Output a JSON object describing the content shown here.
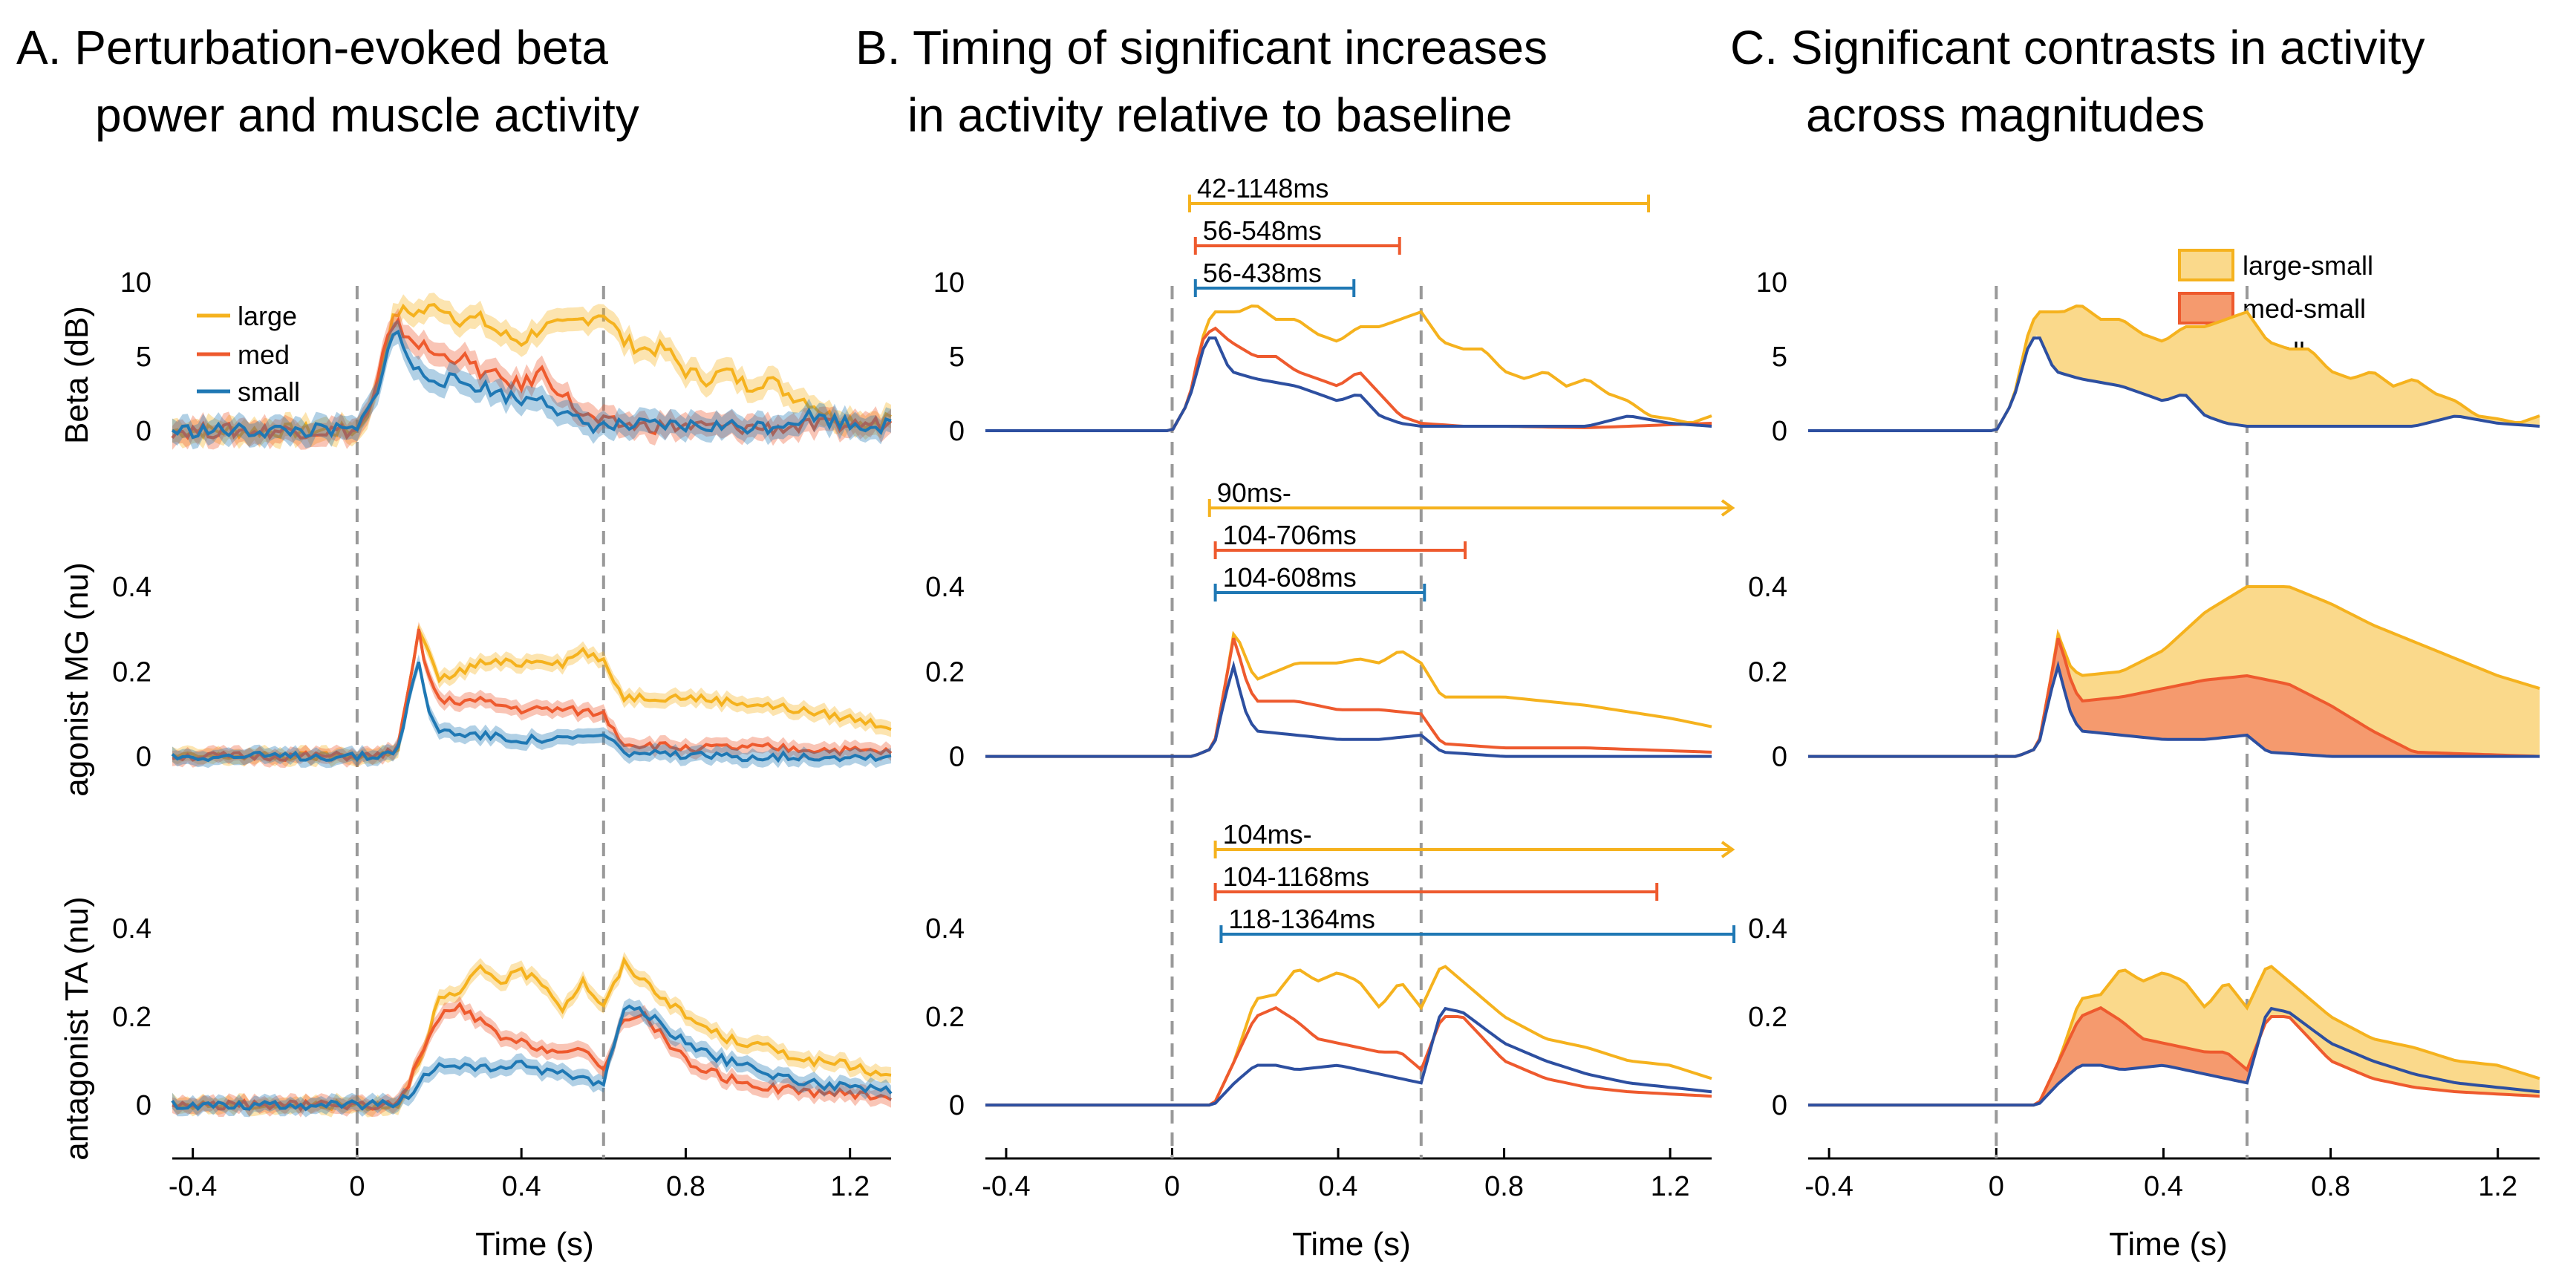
{
  "panels": [
    {
      "id": "A",
      "title_line1": "A. Perturbation-evoked beta",
      "title_line2": "power and muscle activity"
    },
    {
      "id": "B",
      "title_line1": "B. Timing of significant increases",
      "title_line2": "in activity relative to baseline"
    },
    {
      "id": "C",
      "title_line1": "C. Significant contrasts in activity",
      "title_line2": "across magnitudes"
    }
  ],
  "row_labels": [
    "Beta (dB)",
    "agonist MG (nu)",
    "antagonist TA (nu)"
  ],
  "colors": {
    "large": "#F5B21E",
    "med": "#EE5A2E",
    "small": "#1F78B4",
    "small_c": "#2D4FA0",
    "dashed": "#999999"
  },
  "legend_A": [
    "large",
    "med",
    "small"
  ],
  "legend_C": [
    "large-small",
    "med-small",
    "small"
  ],
  "xlabel": "Time (s)",
  "xticks": [
    "-0.4",
    "0",
    "0.4",
    "0.8",
    "1.2"
  ],
  "yticks_beta": [
    "0",
    "5",
    "10"
  ],
  "yticks_emg": [
    "0",
    "0.2",
    "0.4"
  ],
  "intervals": {
    "beta": [
      {
        "label": "42-1148ms",
        "series": "large",
        "start": 0.042,
        "end": 1.148,
        "open": false
      },
      {
        "label": "56-548ms",
        "series": "med",
        "start": 0.056,
        "end": 0.548,
        "open": false
      },
      {
        "label": "56-438ms",
        "series": "small",
        "start": 0.056,
        "end": 0.438,
        "open": false
      }
    ],
    "mg": [
      {
        "label": "90ms-",
        "series": "large",
        "start": 0.09,
        "end": 1.35,
        "open": true
      },
      {
        "label": "104-706ms",
        "series": "med",
        "start": 0.104,
        "end": 0.706,
        "open": false
      },
      {
        "label": "104-608ms",
        "series": "small",
        "start": 0.104,
        "end": 0.608,
        "open": false
      }
    ],
    "ta": [
      {
        "label": "104ms-",
        "series": "large",
        "start": 0.104,
        "end": 1.35,
        "open": true
      },
      {
        "label": "104-1168ms",
        "series": "med",
        "start": 0.104,
        "end": 1.168,
        "open": false
      },
      {
        "label": "118-1364ms",
        "series": "small",
        "start": 0.118,
        "end": 1.364,
        "open": false
      }
    ]
  },
  "chart_data": {
    "type": "line",
    "title": "Perturbation-evoked beta power and muscle activity",
    "xlabel": "Time (s)",
    "xlim": [
      -0.45,
      1.3
    ],
    "events_s": [
      0,
      0.6
    ],
    "rows": [
      {
        "name": "Beta (dB)",
        "ylim": [
          -1,
          10
        ],
        "series": [
          {
            "name": "large",
            "points": [
              [
                -0.45,
                0
              ],
              [
                -0.1,
                0
              ],
              [
                0,
                0
              ],
              [
                0.04,
                2
              ],
              [
                0.08,
                7
              ],
              [
                0.1,
                8
              ],
              [
                0.16,
                8
              ],
              [
                0.2,
                8.5
              ],
              [
                0.25,
                7.5
              ],
              [
                0.3,
                7.5
              ],
              [
                0.35,
                6.5
              ],
              [
                0.4,
                6
              ],
              [
                0.45,
                7
              ],
              [
                0.5,
                7
              ],
              [
                0.55,
                7.5
              ],
              [
                0.6,
                8
              ],
              [
                0.65,
                6
              ],
              [
                0.7,
                5.5
              ],
              [
                0.75,
                5.5
              ],
              [
                0.8,
                4
              ],
              [
                0.85,
                3.5
              ],
              [
                0.9,
                4
              ],
              [
                0.95,
                3
              ],
              [
                1.0,
                3.5
              ],
              [
                1.05,
                2.5
              ],
              [
                1.1,
                2
              ],
              [
                1.15,
                1
              ],
              [
                1.2,
                0.8
              ],
              [
                1.25,
                0.5
              ],
              [
                1.3,
                1
              ]
            ]
          },
          {
            "name": "med",
            "points": [
              [
                -0.45,
                0
              ],
              [
                -0.1,
                0
              ],
              [
                0,
                0
              ],
              [
                0.04,
                2
              ],
              [
                0.07,
                6
              ],
              [
                0.1,
                7
              ],
              [
                0.14,
                6
              ],
              [
                0.2,
                5
              ],
              [
                0.25,
                5
              ],
              [
                0.3,
                4
              ],
              [
                0.35,
                3.5
              ],
              [
                0.4,
                3
              ],
              [
                0.45,
                4
              ],
              [
                0.5,
                2.5
              ],
              [
                0.55,
                1
              ],
              [
                0.6,
                0.5
              ],
              [
                0.7,
                0.3
              ],
              [
                0.8,
                0.3
              ],
              [
                1.0,
                0.2
              ],
              [
                1.3,
                0.5
              ]
            ]
          },
          {
            "name": "small",
            "points": [
              [
                -0.45,
                0
              ],
              [
                -0.1,
                0
              ],
              [
                0,
                0
              ],
              [
                0.04,
                2
              ],
              [
                0.08,
                6
              ],
              [
                0.1,
                6.5
              ],
              [
                0.14,
                4
              ],
              [
                0.2,
                3.5
              ],
              [
                0.3,
                3
              ],
              [
                0.4,
                2
              ],
              [
                0.45,
                2.5
              ],
              [
                0.5,
                1
              ],
              [
                0.55,
                0.5
              ],
              [
                0.6,
                0.3
              ],
              [
                0.8,
                0.3
              ],
              [
                1.0,
                0.3
              ],
              [
                1.1,
                1
              ],
              [
                1.2,
                0.5
              ],
              [
                1.3,
                0.3
              ]
            ]
          }
        ]
      },
      {
        "name": "agonist MG (nu)",
        "ylim": [
          -0.02,
          0.4
        ],
        "series": [
          {
            "name": "large",
            "points": [
              [
                -0.45,
                0
              ],
              [
                0.05,
                0
              ],
              [
                0.1,
                0.02
              ],
              [
                0.13,
                0.18
              ],
              [
                0.15,
                0.3
              ],
              [
                0.17,
                0.25
              ],
              [
                0.2,
                0.18
              ],
              [
                0.25,
                0.2
              ],
              [
                0.3,
                0.22
              ],
              [
                0.35,
                0.22
              ],
              [
                0.4,
                0.22
              ],
              [
                0.45,
                0.23
              ],
              [
                0.5,
                0.22
              ],
              [
                0.55,
                0.25
              ],
              [
                0.6,
                0.22
              ],
              [
                0.65,
                0.14
              ],
              [
                0.8,
                0.14
              ],
              [
                1.0,
                0.12
              ],
              [
                1.2,
                0.09
              ],
              [
                1.3,
                0.07
              ]
            ]
          },
          {
            "name": "med",
            "points": [
              [
                -0.45,
                0
              ],
              [
                0.05,
                0
              ],
              [
                0.1,
                0.02
              ],
              [
                0.13,
                0.18
              ],
              [
                0.15,
                0.29
              ],
              [
                0.17,
                0.2
              ],
              [
                0.2,
                0.13
              ],
              [
                0.3,
                0.13
              ],
              [
                0.4,
                0.11
              ],
              [
                0.5,
                0.11
              ],
              [
                0.6,
                0.1
              ],
              [
                0.65,
                0.03
              ],
              [
                0.8,
                0.02
              ],
              [
                1.0,
                0.02
              ],
              [
                1.3,
                0.01
              ]
            ]
          },
          {
            "name": "small",
            "points": [
              [
                -0.45,
                0
              ],
              [
                0.05,
                0
              ],
              [
                0.1,
                0.02
              ],
              [
                0.13,
                0.15
              ],
              [
                0.15,
                0.22
              ],
              [
                0.17,
                0.12
              ],
              [
                0.2,
                0.06
              ],
              [
                0.3,
                0.05
              ],
              [
                0.4,
                0.04
              ],
              [
                0.5,
                0.04
              ],
              [
                0.6,
                0.05
              ],
              [
                0.65,
                0.01
              ],
              [
                0.8,
                0
              ],
              [
                1.3,
                0
              ]
            ]
          }
        ]
      },
      {
        "name": "antagonist TA (nu)",
        "ylim": [
          -0.02,
          0.4
        ],
        "series": [
          {
            "name": "large",
            "points": [
              [
                -0.45,
                0
              ],
              [
                0.1,
                0
              ],
              [
                0.15,
                0.1
              ],
              [
                0.2,
                0.24
              ],
              [
                0.25,
                0.25
              ],
              [
                0.3,
                0.31
              ],
              [
                0.35,
                0.28
              ],
              [
                0.4,
                0.3
              ],
              [
                0.45,
                0.28
              ],
              [
                0.5,
                0.22
              ],
              [
                0.55,
                0.28
              ],
              [
                0.6,
                0.22
              ],
              [
                0.65,
                0.32
              ],
              [
                0.7,
                0.28
              ],
              [
                0.8,
                0.2
              ],
              [
                0.9,
                0.15
              ],
              [
                1.0,
                0.13
              ],
              [
                1.1,
                0.1
              ],
              [
                1.2,
                0.09
              ],
              [
                1.3,
                0.06
              ]
            ]
          },
          {
            "name": "med",
            "points": [
              [
                -0.45,
                0
              ],
              [
                0.1,
                0
              ],
              [
                0.15,
                0.1
              ],
              [
                0.2,
                0.2
              ],
              [
                0.25,
                0.22
              ],
              [
                0.3,
                0.19
              ],
              [
                0.35,
                0.15
              ],
              [
                0.4,
                0.14
              ],
              [
                0.5,
                0.12
              ],
              [
                0.55,
                0.12
              ],
              [
                0.6,
                0.08
              ],
              [
                0.65,
                0.2
              ],
              [
                0.7,
                0.2
              ],
              [
                0.8,
                0.1
              ],
              [
                0.9,
                0.06
              ],
              [
                1.0,
                0.04
              ],
              [
                1.1,
                0.03
              ],
              [
                1.3,
                0.02
              ]
            ]
          },
          {
            "name": "small",
            "points": [
              [
                -0.45,
                0
              ],
              [
                0.1,
                0
              ],
              [
                0.15,
                0.05
              ],
              [
                0.2,
                0.09
              ],
              [
                0.25,
                0.09
              ],
              [
                0.3,
                0.08
              ],
              [
                0.4,
                0.09
              ],
              [
                0.5,
                0.07
              ],
              [
                0.6,
                0.05
              ],
              [
                0.65,
                0.22
              ],
              [
                0.7,
                0.21
              ],
              [
                0.8,
                0.14
              ],
              [
                0.9,
                0.1
              ],
              [
                1.0,
                0.07
              ],
              [
                1.1,
                0.05
              ],
              [
                1.2,
                0.04
              ],
              [
                1.3,
                0.03
              ]
            ]
          }
        ]
      }
    ],
    "contrast_bands_panel_C": [
      {
        "row": "Beta (dB)",
        "name": "large-small",
        "between": [
          "small",
          "large"
        ]
      },
      {
        "row": "agonist MG (nu)",
        "name": "large-small",
        "between": [
          "med",
          "large_c"
        ]
      },
      {
        "row": "agonist MG (nu)",
        "name": "med-small",
        "between": [
          "small",
          "med_c"
        ]
      },
      {
        "row": "antagonist TA (nu)",
        "name": "large-small",
        "between": [
          "med",
          "large"
        ]
      },
      {
        "row": "antagonist TA (nu)",
        "name": "med-small",
        "between": [
          "small",
          "med"
        ]
      }
    ],
    "panel_C_overrides": {
      "agonist MG (nu)": {
        "large_c": [
          [
            -0.45,
            0
          ],
          [
            0.05,
            0
          ],
          [
            0.1,
            0.02
          ],
          [
            0.13,
            0.18
          ],
          [
            0.15,
            0.3
          ],
          [
            0.17,
            0.22
          ],
          [
            0.2,
            0.19
          ],
          [
            0.3,
            0.2
          ],
          [
            0.4,
            0.25
          ],
          [
            0.5,
            0.34
          ],
          [
            0.6,
            0.4
          ],
          [
            0.7,
            0.4
          ],
          [
            0.8,
            0.36
          ],
          [
            0.9,
            0.31
          ],
          [
            1.0,
            0.27
          ],
          [
            1.1,
            0.23
          ],
          [
            1.2,
            0.19
          ],
          [
            1.3,
            0.16
          ]
        ],
        "med_c": [
          [
            -0.45,
            0
          ],
          [
            0.05,
            0
          ],
          [
            0.1,
            0.02
          ],
          [
            0.13,
            0.18
          ],
          [
            0.15,
            0.29
          ],
          [
            0.17,
            0.2
          ],
          [
            0.2,
            0.13
          ],
          [
            0.3,
            0.14
          ],
          [
            0.4,
            0.16
          ],
          [
            0.5,
            0.18
          ],
          [
            0.6,
            0.19
          ],
          [
            0.7,
            0.17
          ],
          [
            0.8,
            0.12
          ],
          [
            0.9,
            0.06
          ],
          [
            1.0,
            0.01
          ],
          [
            1.3,
            0
          ]
        ]
      }
    }
  }
}
